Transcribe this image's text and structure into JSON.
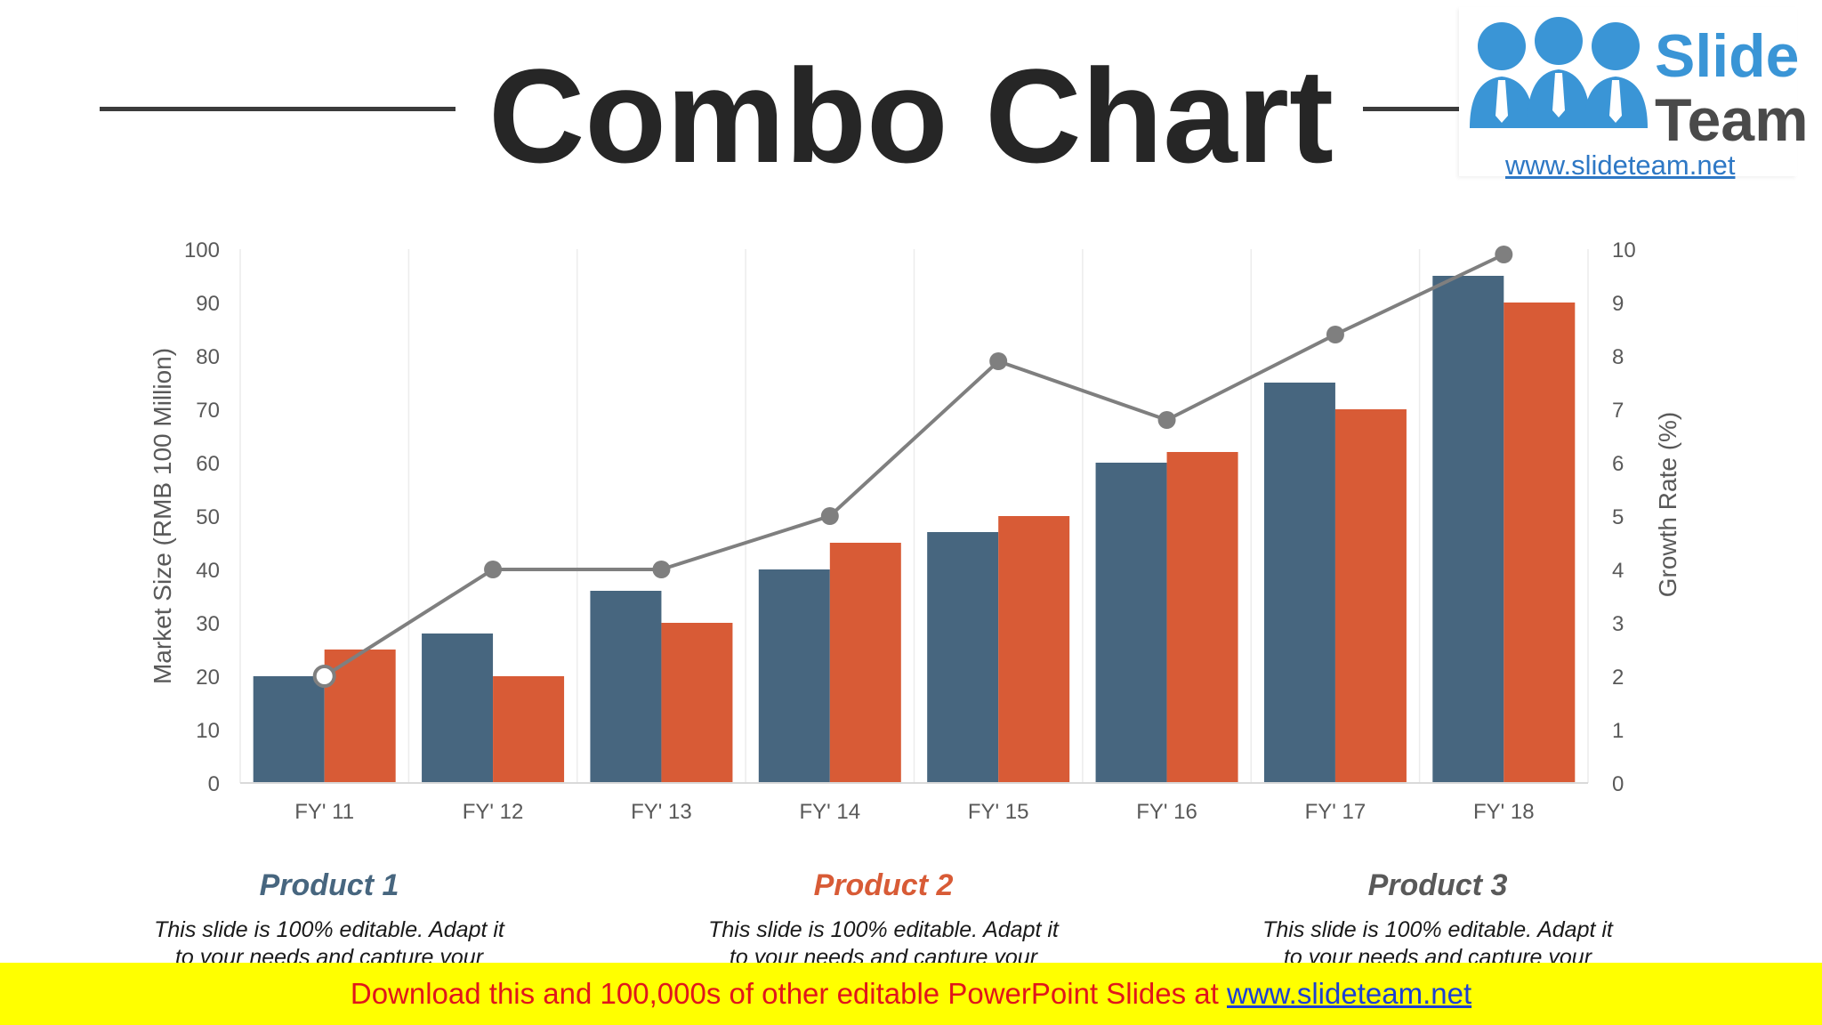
{
  "slide": {
    "title": "Combo Chart",
    "banner_text": "Download this and 100,000s of other editable PowerPoint Slides at ",
    "banner_link": "www.slideteam.net"
  },
  "logo": {
    "line1": "Slide",
    "line2": "Team",
    "url": "www.slideteam.net",
    "icon": "three-people-icon",
    "colors": {
      "blue": "#3a95d6",
      "dark": "#4a4a4a",
      "link": "#2e78c5"
    }
  },
  "products": [
    {
      "title": "Product 1",
      "color": "#47667f",
      "desc1": "This slide is 100% editable. Adapt it",
      "desc2": "to your needs and capture your"
    },
    {
      "title": "Product 2",
      "color": "#d85b36",
      "desc1": "This slide is 100% editable. Adapt it",
      "desc2": "to your needs and capture your"
    },
    {
      "title": "Product 3",
      "color": "#595959",
      "desc1": "This slide is 100% editable. Adapt it",
      "desc2": "to your needs and capture your"
    }
  ],
  "chart_data": {
    "type": "bar",
    "combo": "bar+line",
    "categories": [
      "FY' 11",
      "FY' 12",
      "FY' 13",
      "FY' 14",
      "FY' 15",
      "FY' 16",
      "FY' 17",
      "FY' 18"
    ],
    "series": [
      {
        "name": "Product 1",
        "type": "bar",
        "axis": "left",
        "color": "#47667f",
        "values": [
          20,
          28,
          36,
          40,
          47,
          60,
          75,
          95
        ]
      },
      {
        "name": "Product 2",
        "type": "bar",
        "axis": "left",
        "color": "#d85b36",
        "values": [
          25,
          20,
          30,
          45,
          50,
          62,
          70,
          90
        ]
      },
      {
        "name": "Product 3",
        "type": "line",
        "axis": "right",
        "color": "#7f7f7f",
        "values": [
          2,
          4,
          4,
          5,
          7.9,
          6.8,
          8.4,
          9.9
        ]
      }
    ],
    "ylabel": "Market Size (RMB 100 Million)",
    "y2label": "Growth Rate (%)",
    "ylim": [
      0,
      100
    ],
    "y2lim": [
      0,
      10
    ],
    "yticks": [
      0,
      10,
      20,
      30,
      40,
      50,
      60,
      70,
      80,
      90,
      100
    ],
    "y2ticks": [
      0,
      1,
      2,
      3,
      4,
      5,
      6,
      7,
      8,
      9,
      10
    ],
    "grid": "vertical",
    "legend": "none"
  }
}
